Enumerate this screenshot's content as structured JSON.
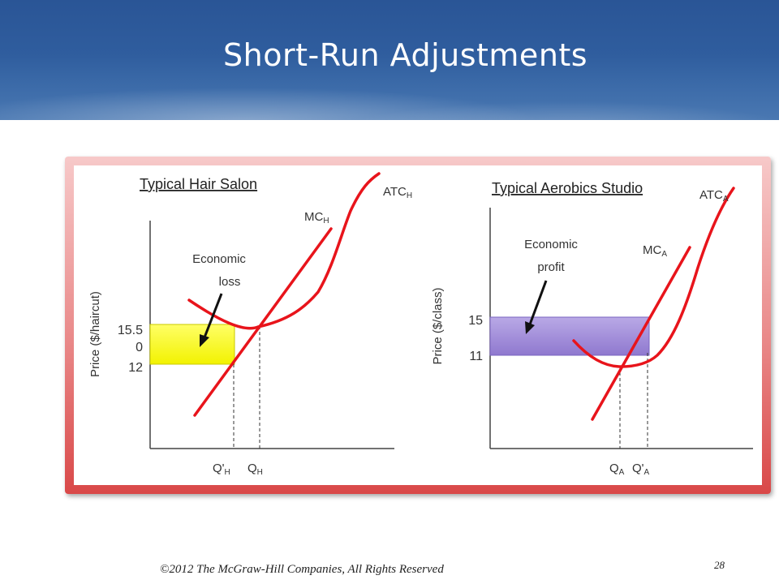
{
  "slide": {
    "title": "Short-Run Adjustments",
    "footer": "©2012 The McGraw-Hill Companies, All Rights Reserved",
    "page_number": "28"
  },
  "left_panel": {
    "title": "Typical Hair Salon",
    "ylabel": "Price ($/haircut)",
    "tick_top": "15.5",
    "tick_top_extra": "0",
    "tick_bottom": "12",
    "atc_main": "ATC",
    "atc_sub": "H",
    "mc_main": "MC",
    "mc_sub": "H",
    "annotation_line1": "Economic",
    "annotation_line2": "loss",
    "q_prime_main": "Q'",
    "q_prime_sub": "H",
    "q_main": "Q",
    "q_sub": "H",
    "area_color": "#ffff00"
  },
  "right_panel": {
    "title": "Typical Aerobics Studio",
    "ylabel": "Price ($/class)",
    "tick_top": "15",
    "tick_bottom": "11",
    "atc_main": "ATC",
    "atc_sub": "A",
    "mc_main": "MC",
    "mc_sub": "A",
    "annotation_line1": "Economic",
    "annotation_line2": "profit",
    "q_main": "Q",
    "q_sub": "A",
    "q_prime_main": "Q'",
    "q_prime_sub": "A",
    "area_color": "#9b86d6"
  },
  "colors": {
    "curve": "#e8141b",
    "axis": "#333333",
    "text": "#333333"
  }
}
